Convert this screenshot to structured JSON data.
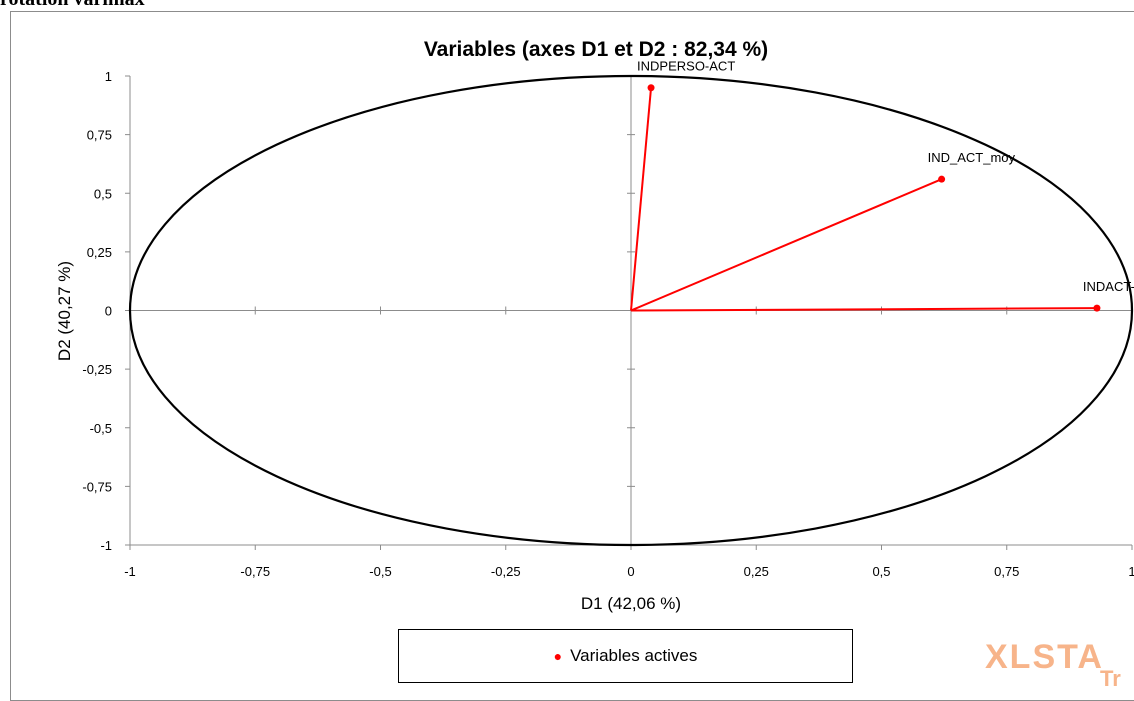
{
  "page": {
    "heading": "rotation varimax"
  },
  "watermark": {
    "brand": "XLSTA",
    "sub": "Tr",
    "color": "#f7b48a"
  },
  "chart_data": {
    "type": "scatter",
    "title": "Variables (axes D1 et D2 : 82,34 %)",
    "xlabel": "D1 (42,06 %)",
    "ylabel": "D2 (40,27 %)",
    "xlim": [
      -1,
      1
    ],
    "ylim": [
      -1,
      1
    ],
    "x_ticks": [
      -1,
      -0.75,
      -0.5,
      -0.25,
      0,
      0.25,
      0.5,
      0.75,
      1
    ],
    "y_ticks": [
      -1,
      -0.75,
      -0.5,
      -0.25,
      0,
      0.25,
      0.5,
      0.75,
      1
    ],
    "x_tick_labels": [
      "-1",
      "-0,75",
      "-0,5",
      "-0,25",
      "0",
      "0,25",
      "0,5",
      "0,75",
      "1"
    ],
    "y_tick_labels": [
      "-1",
      "-0,75",
      "-0,5",
      "-0,25",
      "0",
      "0,25",
      "0,5",
      "0,75",
      "1"
    ],
    "grid": false,
    "correlation_circle": true,
    "legend_position": "bottom",
    "series": [
      {
        "name": "Variables actives",
        "color": "#ff0000",
        "points": [
          {
            "label": "INDPERSO-ACT",
            "x": 0.04,
            "y": 0.95
          },
          {
            "label": "IND_ACT_moy",
            "x": 0.62,
            "y": 0.56
          },
          {
            "label": "INDACT-PE",
            "x": 0.93,
            "y": 0.01
          }
        ]
      }
    ]
  }
}
